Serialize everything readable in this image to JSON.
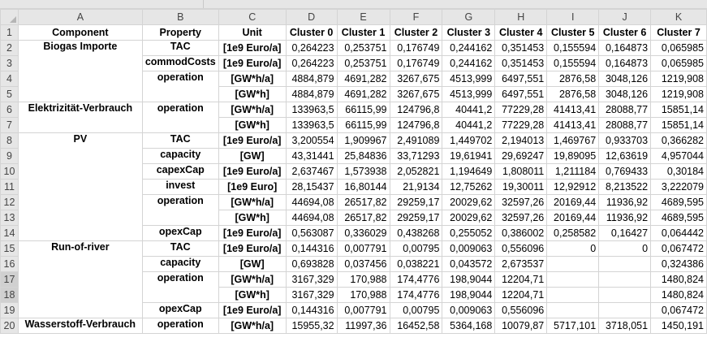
{
  "columns": [
    "A",
    "B",
    "C",
    "D",
    "E",
    "F",
    "G",
    "H",
    "I",
    "J",
    "K"
  ],
  "header": {
    "component": "Component",
    "property": "Property",
    "unit": "Unit",
    "clusters": [
      "Cluster 0",
      "Cluster 1",
      "Cluster 2",
      "Cluster 3",
      "Cluster 4",
      "Cluster 5",
      "Cluster 6",
      "Cluster 7"
    ]
  },
  "rows": [
    {
      "num": "1"
    },
    {
      "num": "2",
      "component": "Biogas Importe",
      "property": "TAC",
      "unit": "[1e9 Euro/a]",
      "values": [
        "0,264223",
        "0,253751",
        "0,176749",
        "0,244162",
        "0,351453",
        "0,155594",
        "0,164873",
        "0,065985"
      ]
    },
    {
      "num": "3",
      "property": "commodCosts",
      "unit": "[1e9 Euro/a]",
      "values": [
        "0,264223",
        "0,253751",
        "0,176749",
        "0,244162",
        "0,351453",
        "0,155594",
        "0,164873",
        "0,065985"
      ]
    },
    {
      "num": "4",
      "property": "operation",
      "unit": "[GW*h/a]",
      "values": [
        "4884,879",
        "4691,282",
        "3267,675",
        "4513,999",
        "6497,551",
        "2876,58",
        "3048,126",
        "1219,908"
      ]
    },
    {
      "num": "5",
      "unit": "[GW*h]",
      "values": [
        "4884,879",
        "4691,282",
        "3267,675",
        "4513,999",
        "6497,551",
        "2876,58",
        "3048,126",
        "1219,908"
      ]
    },
    {
      "num": "6",
      "component": "Elektrizität-Verbrauch",
      "property": "operation",
      "unit": "[GW*h/a]",
      "values": [
        "133963,5",
        "66115,99",
        "124796,8",
        "40441,2",
        "77229,28",
        "41413,41",
        "28088,77",
        "15851,14"
      ]
    },
    {
      "num": "7",
      "unit": "[GW*h]",
      "values": [
        "133963,5",
        "66115,99",
        "124796,8",
        "40441,2",
        "77229,28",
        "41413,41",
        "28088,77",
        "15851,14"
      ]
    },
    {
      "num": "8",
      "component": "PV",
      "property": "TAC",
      "unit": "[1e9 Euro/a]",
      "values": [
        "3,200554",
        "1,909967",
        "2,491089",
        "1,449702",
        "2,194013",
        "1,469767",
        "0,933703",
        "0,366282"
      ]
    },
    {
      "num": "9",
      "property": "capacity",
      "unit": "[GW]",
      "values": [
        "43,31441",
        "25,84836",
        "33,71293",
        "19,61941",
        "29,69247",
        "19,89095",
        "12,63619",
        "4,957044"
      ]
    },
    {
      "num": "10",
      "property": "capexCap",
      "unit": "[1e9 Euro/a]",
      "values": [
        "2,637467",
        "1,573938",
        "2,052821",
        "1,194649",
        "1,808011",
        "1,211184",
        "0,769433",
        "0,30184"
      ]
    },
    {
      "num": "11",
      "property": "invest",
      "unit": "[1e9 Euro]",
      "values": [
        "28,15437",
        "16,80144",
        "21,9134",
        "12,75262",
        "19,30011",
        "12,92912",
        "8,213522",
        "3,222079"
      ]
    },
    {
      "num": "12",
      "property": "operation",
      "unit": "[GW*h/a]",
      "values": [
        "44694,08",
        "26517,82",
        "29259,17",
        "20029,62",
        "32597,26",
        "20169,44",
        "11936,92",
        "4689,595"
      ]
    },
    {
      "num": "13",
      "unit": "[GW*h]",
      "values": [
        "44694,08",
        "26517,82",
        "29259,17",
        "20029,62",
        "32597,26",
        "20169,44",
        "11936,92",
        "4689,595"
      ]
    },
    {
      "num": "14",
      "property": "opexCap",
      "unit": "[1e9 Euro/a]",
      "values": [
        "0,563087",
        "0,336029",
        "0,438268",
        "0,255052",
        "0,386002",
        "0,258582",
        "0,16427",
        "0,064442"
      ]
    },
    {
      "num": "15",
      "component": "Run-of-river",
      "property": "TAC",
      "unit": "[1e9 Euro/a]",
      "values": [
        "0,144316",
        "0,007791",
        "0,00795",
        "0,009063",
        "0,556096",
        "0",
        "0",
        "0,067472"
      ]
    },
    {
      "num": "16",
      "property": "capacity",
      "unit": "[GW]",
      "values": [
        "0,693828",
        "0,037456",
        "0,038221",
        "0,043572",
        "2,673537",
        "",
        "",
        "0,324386"
      ]
    },
    {
      "num": "17",
      "property": "operation",
      "unit": "[GW*h/a]",
      "values": [
        "3167,329",
        "170,988",
        "174,4776",
        "198,9044",
        "12204,71",
        "",
        "",
        "1480,824"
      ]
    },
    {
      "num": "18",
      "unit": "[GW*h]",
      "values": [
        "3167,329",
        "170,988",
        "174,4776",
        "198,9044",
        "12204,71",
        "",
        "",
        "1480,824"
      ]
    },
    {
      "num": "19",
      "property": "opexCap",
      "unit": "[1e9 Euro/a]",
      "values": [
        "0,144316",
        "0,007791",
        "0,00795",
        "0,009063",
        "0,556096",
        "",
        "",
        "0,067472"
      ]
    },
    {
      "num": "20",
      "component": "Wasserstoff-Verbrauch",
      "property": "operation",
      "unit": "[GW*h/a]",
      "values": [
        "15955,32",
        "11997,36",
        "16452,58",
        "5364,168",
        "10079,87",
        "5717,101",
        "3718,051",
        "1450,191"
      ]
    }
  ]
}
